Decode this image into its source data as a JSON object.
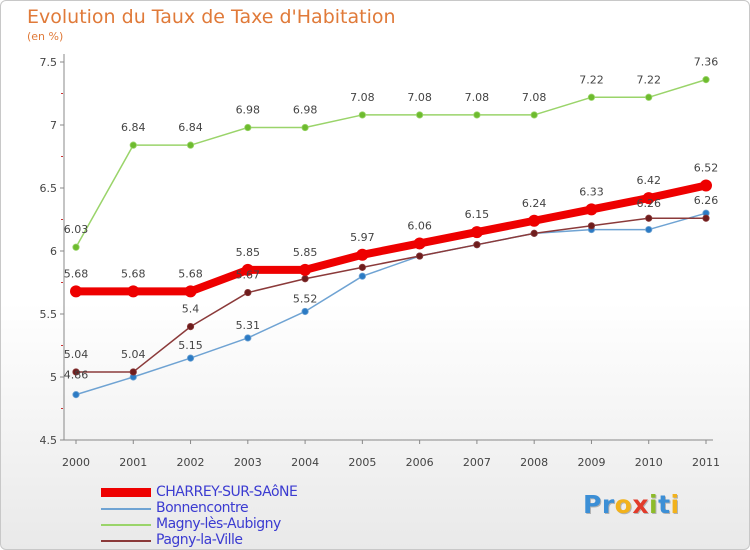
{
  "title": "Evolution du Taux de Taxe d'Habitation",
  "subtitle": "(en %)",
  "colors": {
    "title": "#e07a39",
    "axis_text": "#444444",
    "legend_text": "#3b3bd1"
  },
  "logo": {
    "text": "Proxiti",
    "letter_colors": [
      "#3c8fd6",
      "#3c8fd6",
      "#f2b21c",
      "#e23b2a",
      "#8dbb2a",
      "#3c8fd6",
      "#f2b21c"
    ]
  },
  "chart_data": {
    "type": "line",
    "title": "Evolution du Taux de Taxe d'Habitation",
    "subtitle": "(en %)",
    "xlabel": "",
    "ylabel": "",
    "categories": [
      "2000",
      "2001",
      "2002",
      "2003",
      "2004",
      "2005",
      "2006",
      "2007",
      "2008",
      "2009",
      "2010",
      "2011"
    ],
    "ylim": [
      4.5,
      7.5
    ],
    "yticks": [
      "4.5",
      "5",
      "5.5",
      "6",
      "6.5",
      "7",
      "7.5"
    ],
    "grid": false,
    "legend_position": "bottom-left",
    "series": [
      {
        "name": "CHARREY-SUR-SAôNE",
        "color": "#ee0000",
        "emphasis": "thick",
        "values": [
          5.68,
          5.68,
          5.68,
          5.85,
          5.85,
          5.97,
          6.06,
          6.15,
          6.24,
          6.33,
          6.42,
          6.52
        ],
        "labels": [
          "5.68",
          "5.68",
          "5.68",
          "5.85",
          "5.85",
          "5.97",
          "6.06",
          "6.15",
          "6.24",
          "6.33",
          "6.42",
          "6.52"
        ]
      },
      {
        "name": "Bonnencontre",
        "color": "#6fa3d3",
        "marker": "#2c7bc4",
        "values": [
          4.86,
          5.0,
          5.15,
          5.31,
          5.52,
          5.8,
          5.96,
          6.05,
          6.14,
          6.17,
          6.17,
          6.3
        ],
        "labels": [
          "4.86",
          "",
          "5.15",
          "5.31",
          "5.52",
          "",
          "",
          "",
          "",
          "",
          "",
          ""
        ]
      },
      {
        "name": "Magny-lès-Aubigny",
        "color": "#9ad46a",
        "marker": "#6dbb2e",
        "values": [
          6.03,
          6.84,
          6.84,
          6.98,
          6.98,
          7.08,
          7.08,
          7.08,
          7.08,
          7.22,
          7.22,
          7.36
        ],
        "labels": [
          "6.03",
          "6.84",
          "6.84",
          "6.98",
          "6.98",
          "7.08",
          "7.08",
          "7.08",
          "7.08",
          "7.22",
          "7.22",
          "7.36"
        ]
      },
      {
        "name": "Pagny-la-Ville",
        "color": "#8b3a3a",
        "marker": "#6e1d1d",
        "values": [
          5.04,
          5.04,
          5.4,
          5.67,
          5.78,
          5.87,
          5.96,
          6.05,
          6.14,
          6.2,
          6.26,
          6.26
        ],
        "labels": [
          "5.04",
          "5.04",
          "5.4",
          "5.67",
          "",
          "",
          "",
          "",
          "",
          "",
          "6.26",
          "6.26"
        ]
      }
    ]
  }
}
